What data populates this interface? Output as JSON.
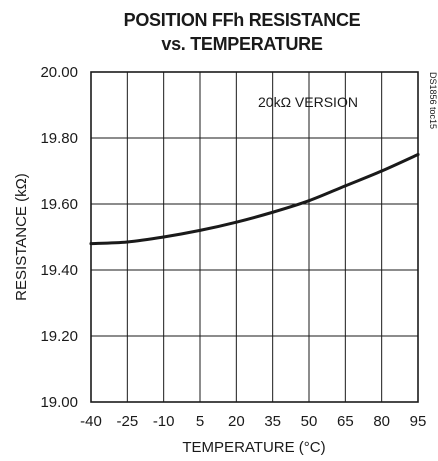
{
  "chart_data": {
    "type": "line",
    "title": [
      "POSITION FFh RESISTANCE",
      "vs. TEMPERATURE"
    ],
    "xlabel": "TEMPERATURE (°C)",
    "ylabel": "RESISTANCE (kΩ)",
    "xlim": [
      -40,
      95
    ],
    "ylim": [
      19.0,
      20.0
    ],
    "x_ticks": [
      "-40",
      "-25",
      "-10",
      "5",
      "20",
      "35",
      "50",
      "65",
      "80",
      "95"
    ],
    "y_ticks": [
      "20.00",
      "19.80",
      "19.60",
      "19.40",
      "19.20",
      "19.00"
    ],
    "grid": true,
    "annotation": "20kΩ VERSION",
    "side_label": "DS1856 toc15",
    "series": [
      {
        "x": [
          -40,
          -25,
          -10,
          5,
          20,
          35,
          50,
          65,
          80,
          95
        ],
        "y": [
          19.48,
          19.485,
          19.5,
          19.52,
          19.545,
          19.575,
          19.61,
          19.655,
          19.7,
          19.75
        ]
      }
    ],
    "colors": {
      "line": "#1a1a1a",
      "grid": "#1a1a1a"
    }
  }
}
